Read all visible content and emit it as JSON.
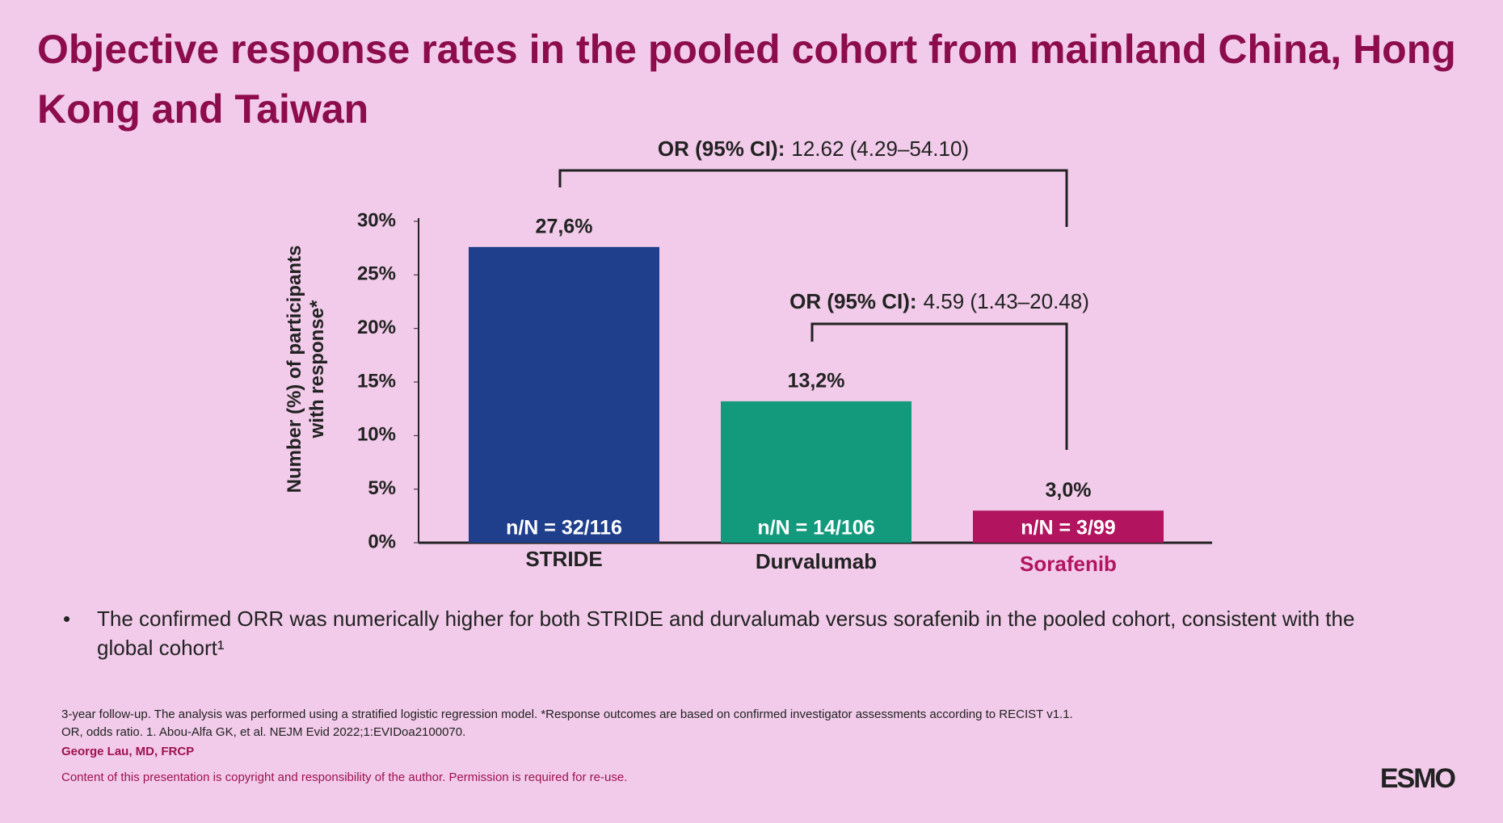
{
  "chart_data": {
    "type": "bar",
    "title": "Objective response rates in the pooled cohort from mainland China, Hong Kong and Taiwan",
    "y_label": "Number (%) of participants with response*",
    "categories": [
      "STRIDE",
      "Durvalumab",
      "Sorafenib"
    ],
    "values": [
      27.6,
      13.2,
      3.0
    ],
    "value_labels": [
      "27,6%",
      "13,2%",
      "3,0%"
    ],
    "bar_annotations": [
      "n/N = 32/116",
      "n/N = 14/106",
      "n/N = 3/99"
    ],
    "colors": [
      "#1f3f8c",
      "#139a7d",
      "#b2145f"
    ],
    "category_label_colors": [
      "#222222",
      "#222222",
      "#b2145f"
    ],
    "ylim": [
      0,
      30
    ],
    "yticks": [
      {
        "value": 0,
        "label": "0%"
      },
      {
        "value": 5,
        "label": "5%"
      },
      {
        "value": 10,
        "label": "10%"
      },
      {
        "value": 15,
        "label": "15%"
      },
      {
        "value": 20,
        "label": "20%"
      },
      {
        "value": 25,
        "label": "25%"
      },
      {
        "value": 30,
        "label": "30%"
      }
    ],
    "comparisons": [
      {
        "label": "OR (95% CI):",
        "value": "12.62 (4.29–54.10)"
      },
      {
        "label": "OR (95% CI):",
        "value": "4.59 (1.43–20.48)"
      }
    ]
  },
  "bullets": [
    "The confirmed ORR was numerically higher for both STRIDE and durvalumab versus sorafenib in the pooled cohort, consistent with the global cohort¹"
  ],
  "footnotes": [
    "3-year follow-up. The analysis was performed using a stratified logistic regression model. *Response outcomes are based on confirmed investigator assessments according to RECIST v1.1.",
    "OR, odds ratio. 1. Abou-Alfa GK, et al. NEJM Evid 2022;1:EVIDoa2100070."
  ],
  "presenter": "George Lau, MD, FRCP",
  "copyright": "Content of this presentation is copyright and responsibility of the author. Permission is required for re-use.",
  "logo": "ESMO"
}
